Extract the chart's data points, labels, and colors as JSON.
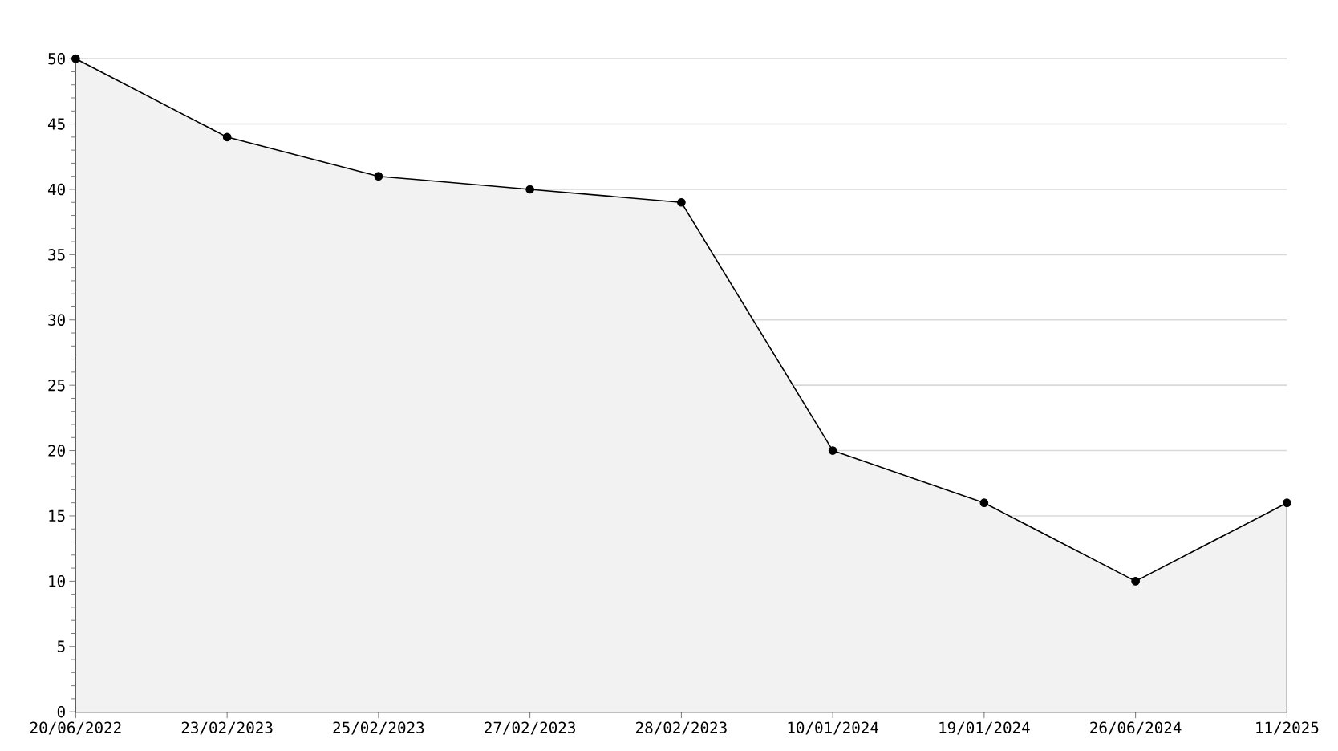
{
  "chart_data": {
    "type": "area",
    "categories": [
      "20/06/2022",
      "23/02/2023",
      "25/02/2023",
      "27/02/2023",
      "28/02/2023",
      "10/01/2024",
      "19/01/2024",
      "26/06/2024",
      "11/2025"
    ],
    "series": [
      {
        "color": "#000000",
        "values": [
          50,
          44,
          41,
          40,
          39,
          20,
          16,
          10,
          16
        ]
      }
    ],
    "ylim": [
      0,
      50
    ],
    "yticks": [
      0,
      5,
      10,
      15,
      20,
      25,
      30,
      35,
      40,
      45,
      50
    ],
    "grid": "y",
    "marker": "circle",
    "line_style": "solid"
  }
}
